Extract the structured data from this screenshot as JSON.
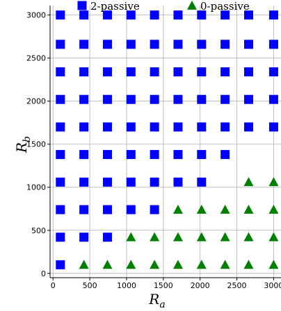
{
  "chart_data": {
    "type": "scatter",
    "title": "",
    "xlabel": {
      "main": "R",
      "sub": "a"
    },
    "ylabel": {
      "main": "R",
      "sub": "b"
    },
    "xlim": [
      -40,
      3100
    ],
    "ylim": [
      -50,
      3110
    ],
    "xticks": [
      0,
      500,
      1000,
      1500,
      2000,
      2500,
      3000
    ],
    "yticks": [
      0,
      500,
      1000,
      1500,
      2000,
      2500,
      3000
    ],
    "grid": true,
    "legend_position": "top",
    "series": [
      {
        "name": "2-passive",
        "marker": "square",
        "color": "#0000ff",
        "points": [
          [
            100,
            100
          ],
          [
            100,
            420
          ],
          [
            420,
            420
          ],
          [
            740,
            420
          ],
          [
            100,
            740
          ],
          [
            420,
            740
          ],
          [
            740,
            740
          ],
          [
            1060,
            740
          ],
          [
            1380,
            740
          ],
          [
            100,
            1060
          ],
          [
            420,
            1060
          ],
          [
            740,
            1060
          ],
          [
            1060,
            1060
          ],
          [
            1380,
            1060
          ],
          [
            1700,
            1060
          ],
          [
            2020,
            1060
          ],
          [
            100,
            1380
          ],
          [
            420,
            1380
          ],
          [
            740,
            1380
          ],
          [
            1060,
            1380
          ],
          [
            1380,
            1380
          ],
          [
            1700,
            1380
          ],
          [
            2020,
            1380
          ],
          [
            2340,
            1380
          ],
          [
            100,
            1700
          ],
          [
            420,
            1700
          ],
          [
            740,
            1700
          ],
          [
            1060,
            1700
          ],
          [
            1380,
            1700
          ],
          [
            1700,
            1700
          ],
          [
            2020,
            1700
          ],
          [
            2340,
            1700
          ],
          [
            2660,
            1700
          ],
          [
            3000,
            1700
          ],
          [
            100,
            2020
          ],
          [
            420,
            2020
          ],
          [
            740,
            2020
          ],
          [
            1060,
            2020
          ],
          [
            1380,
            2020
          ],
          [
            1700,
            2020
          ],
          [
            2020,
            2020
          ],
          [
            2340,
            2020
          ],
          [
            2660,
            2020
          ],
          [
            3000,
            2020
          ],
          [
            100,
            2340
          ],
          [
            420,
            2340
          ],
          [
            740,
            2340
          ],
          [
            1060,
            2340
          ],
          [
            1380,
            2340
          ],
          [
            1700,
            2340
          ],
          [
            2020,
            2340
          ],
          [
            2340,
            2340
          ],
          [
            2660,
            2340
          ],
          [
            3000,
            2340
          ],
          [
            100,
            2660
          ],
          [
            420,
            2660
          ],
          [
            740,
            2660
          ],
          [
            1060,
            2660
          ],
          [
            1380,
            2660
          ],
          [
            1700,
            2660
          ],
          [
            2020,
            2660
          ],
          [
            2340,
            2660
          ],
          [
            2660,
            2660
          ],
          [
            3000,
            2660
          ],
          [
            100,
            3000
          ],
          [
            420,
            3000
          ],
          [
            740,
            3000
          ],
          [
            1060,
            3000
          ],
          [
            1380,
            3000
          ],
          [
            1700,
            3000
          ],
          [
            2020,
            3000
          ],
          [
            2340,
            3000
          ],
          [
            2660,
            3000
          ],
          [
            3000,
            3000
          ]
        ]
      },
      {
        "name": "0-passive",
        "marker": "triangle",
        "color": "#008000",
        "points": [
          [
            420,
            100
          ],
          [
            740,
            100
          ],
          [
            1060,
            100
          ],
          [
            1380,
            100
          ],
          [
            1700,
            100
          ],
          [
            2020,
            100
          ],
          [
            2340,
            100
          ],
          [
            2660,
            100
          ],
          [
            3000,
            100
          ],
          [
            1060,
            420
          ],
          [
            1380,
            420
          ],
          [
            1700,
            420
          ],
          [
            2020,
            420
          ],
          [
            2340,
            420
          ],
          [
            2660,
            420
          ],
          [
            3000,
            420
          ],
          [
            1700,
            740
          ],
          [
            2020,
            740
          ],
          [
            2340,
            740
          ],
          [
            2660,
            740
          ],
          [
            3000,
            740
          ],
          [
            2660,
            1060
          ],
          [
            3000,
            1060
          ]
        ]
      }
    ]
  }
}
